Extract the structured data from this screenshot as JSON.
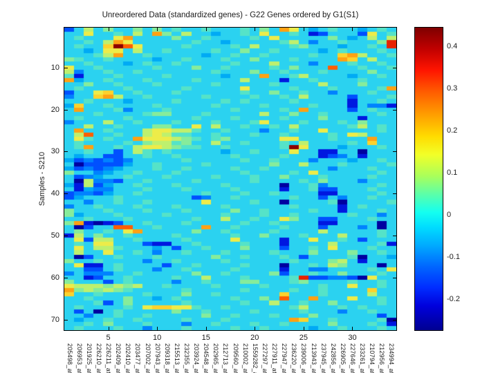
{
  "title": "Unreordered Data (standardized genes) - G22 Genes ordered by G1(S1)",
  "y_axis": {
    "label": "Samples - S210",
    "ticks": [
      10,
      20,
      30,
      40,
      50,
      60,
      70
    ]
  },
  "x_axis": {
    "ticks": [
      5,
      10,
      15,
      20,
      25,
      30
    ],
    "gene_label_suffix": "_",
    "gene_ids": [
      "205498",
      "206953",
      "201925",
      "226210",
      "226211",
      "202409",
      "202410",
      "203477",
      "207002",
      "207943",
      "209318",
      "215513",
      "232355",
      "203924",
      "204548",
      "202965",
      "212713",
      "209560",
      "210002",
      "1559282",
      "227297",
      "227911",
      "227947",
      "236220",
      "239006",
      "213943",
      "237945",
      "242856",
      "226905",
      "227646",
      "233261",
      "210794",
      "212956",
      "234994"
    ]
  },
  "colorbar": {
    "tick_labels": [
      "0.4",
      "0.3",
      "0.2",
      "0.1",
      "0",
      "-0.1",
      "-0.2"
    ],
    "tick_values": [
      0.4,
      0.3,
      0.2,
      0.1,
      0,
      -0.1,
      -0.2
    ],
    "vmin": -0.273,
    "vmax": 0.444,
    "gradient": [
      {
        "p": 0,
        "c": "#7F0000"
      },
      {
        "p": 7,
        "c": "#C00000"
      },
      {
        "p": 14,
        "c": "#FF1400"
      },
      {
        "p": 21,
        "c": "#FF5A00"
      },
      {
        "p": 29,
        "c": "#FFA000"
      },
      {
        "p": 36,
        "c": "#FFDC00"
      },
      {
        "p": 42,
        "c": "#F2FF28"
      },
      {
        "p": 49,
        "c": "#AAFF5A"
      },
      {
        "p": 55,
        "c": "#5CFFA8"
      },
      {
        "p": 61,
        "c": "#14FFF0"
      },
      {
        "p": 66,
        "c": "#00DCFF"
      },
      {
        "p": 72,
        "c": "#00AAFF"
      },
      {
        "p": 79,
        "c": "#0066FF"
      },
      {
        "p": 86,
        "c": "#002CFF"
      },
      {
        "p": 92,
        "c": "#0000DC"
      },
      {
        "p": 100,
        "c": "#000091"
      }
    ]
  },
  "chart_data": {
    "type": "heatmap",
    "title": "Unreordered Data (standardized genes) - G22 Genes ordered by G1(S1)",
    "ylabel": "Samples - S210",
    "rows": 72,
    "cols": 34,
    "yticks": [
      10,
      20,
      30,
      40,
      50,
      60,
      70
    ],
    "xticks": [
      5,
      10,
      15,
      20,
      25,
      30
    ],
    "x_categories": [
      "205498",
      "206953",
      "201925",
      "226210",
      "226211",
      "202409",
      "202410",
      "203477",
      "207002",
      "207943",
      "209318",
      "215513",
      "232355",
      "203924",
      "204548",
      "202965",
      "212713",
      "209560",
      "210002",
      "1559282",
      "227297",
      "227911",
      "227947",
      "236220",
      "239006",
      "213943",
      "237945",
      "242856",
      "226905",
      "227646",
      "233261",
      "210794",
      "212956",
      "234994"
    ],
    "colormap": "jet",
    "clim": [
      -0.273,
      0.444
    ],
    "legend_position": "right-colorbar",
    "value_map": {
      "0": -0.25,
      "1": -0.2,
      "2": -0.15,
      "3": -0.1,
      "4": -0.05,
      "5": 0,
      "6": 0.05,
      "7": 0.1,
      "8": 0.15,
      "9": 0.2,
      "a": 0.25,
      "b": 0.3,
      "c": 0.35,
      "d": 0.4,
      "e": 0.44
    },
    "palette": {
      "0": "#0000A0",
      "1": "#0018E0",
      "2": "#0050FF",
      "3": "#0082FF",
      "4": "#00AAF5",
      "5": "#2BD2F0",
      "6": "#55E3C8",
      "7": "#86EC9B",
      "8": "#BEF06E",
      "9": "#EDEC49",
      "a": "#FCD22D",
      "b": "#FFA113",
      "c": "#FF5E00",
      "d": "#E82100",
      "e": "#8C0000"
    },
    "matrix": [
      "2585755757565565556575b95456554565",
      "559556585b758554556595565125552956",
      "565559b55557556555565955555754 5858",
      "55658b955555565545555568535565557d",
      "5655aec95555655556585556755545565d",
      "5545995855655556557556555545655565",
      "55568b5565555545565565555655ab8556",
      "765565555455655565575556555 5ba5855",
      "5565554565565555565558555355565565",
      "955655555655575565555657555c556556",
      "8355655655555556555755655565555755",
      "61555655556555554555b5568555545565",
      "b455655565555655558555155655556555",
      "5575565556555556555556555585557555",
      "56555565555565555595555655565 5556b",
      "2559a55655565555556557556553555655",
      "355ab855655555655556556585555 25556",
      "5565554555565555656555565555515565",
      "4a55655556555556555565555655515331",
      "5b55563555655555565555 65b555525655",
      "5556555567755565555585575565555565",
      "5655556555555655565555655575551555",
      "3555855655565556555695556555657555",
      "5585565557755958556556585555568565",
      "5b55655589988655655535565595555565",
      "58c55655898665565556556555565 98555",
      "5965655b9998765675555599555655 5b55",
      "565555657886755855655565855556 5a55",
      "56b55658998766556555556e9555455565",
      "5565525865655555455655595511550555",
      "5455225565565555565555655512351555",
      "4232323555556555556556555355545565",
      "5022224556555565555557558555655556",
      "4232345556556555565565555553555655",
      "7553455655565555556555565955555565",
      "5234556555655556555655755565555655",
      "5083325565555655555655556575553555",
      "4182455655565555655555055635555565",
      "5143355565556555565555155622555655",
      "2332455655555565556556555511555565",
      "2455565555555235565555565525355655",
      "5535565565555595555655055556055556",
      "3556555655565555655555565555156555",
      "7555655565556555575565555655155565",
      "7455565555655555655565565555565535",
      "5565556555555655855655975522555655",
      "7b10125565556555556556555511555505",
      "50255cc5565555b556555565552 5553505",
      "5755659b5555575565555655558 5555565",
      "1857556555565555565575556555855565",
      "5928855655556555595555155955652555",
      "5659955521155655556555155558555561",
      "5958865554525565557555255659555655",
      "5855955653556555655556555755575565",
      "5025565556555557556555652555560554",
      "7556555535565555655555565557851555",
      "5911565555255655556555055658755505",
      "5522565553556555565555155335555659",
      "3533355655555755655557255655755565",
      "5512556555565585556555 56d223320955",
      "7555256555535565557755567555565565",
      "9888787855655556555565555565595565",
      "b7878765555565555565555655655 55a55",
      "a55655556555755655555 5a55565555855",
      "556555755456555556557 5c55b55595565",
      "5556257555556555556558556557555565",
      "565555659aa99655655555568555656555",
      "5250565555575565555655556555355655",
      "5535565565555575565556555755555525",
      "545565565555655565555 55ba556555560",
      "5565755565553556555655655557555651",
      "5655565535556555565565555455655565"
    ]
  }
}
